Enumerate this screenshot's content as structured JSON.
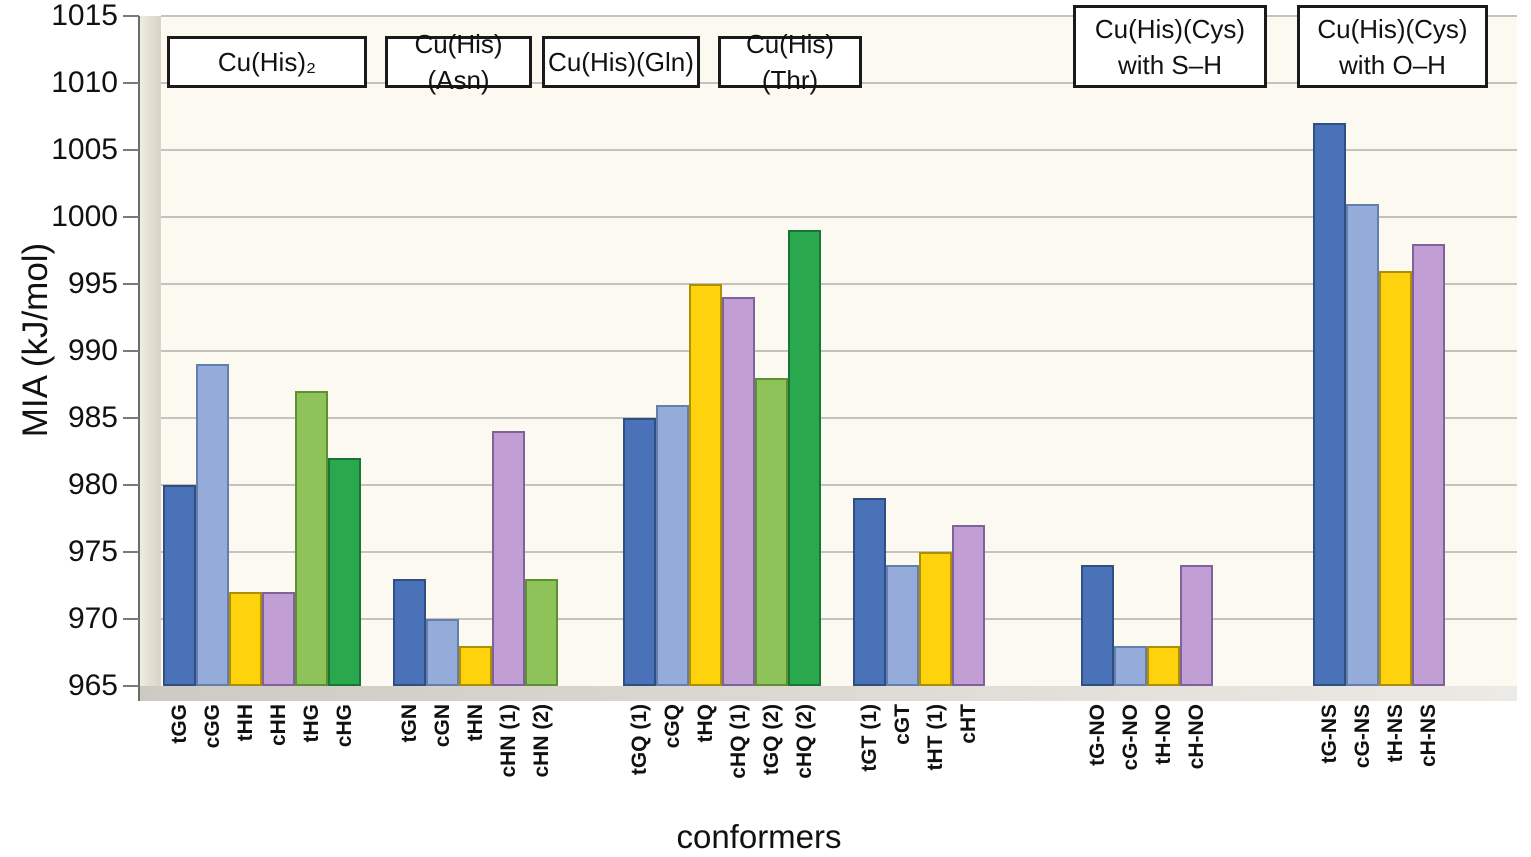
{
  "chart_data": {
    "type": "bar",
    "title": "",
    "ylabel": "MIA (kJ/mol)",
    "xlabel": "conformers",
    "ylim": [
      965,
      1015
    ],
    "ytick_step": 5,
    "grid": true,
    "legend": "none",
    "plot_background": "#fbf9f0",
    "colors": [
      "#4A72B9",
      "#95ACDA",
      "#FED20D",
      "#C19ED4",
      "#8EC35A",
      "#2AA84D"
    ],
    "border_colors": [
      "#2F4E82",
      "#647FAE",
      "#AD8F04",
      "#7F629C",
      "#5F8F33",
      "#187538"
    ],
    "groups": [
      {
        "label": "Cu(His)₂",
        "lines": [
          "Cu(His)₂"
        ],
        "bars": [
          {
            "conformer": "tGG",
            "value": 980,
            "color_index": 0
          },
          {
            "conformer": "cGG",
            "value": 989,
            "color_index": 1
          },
          {
            "conformer": "tHH",
            "value": 972,
            "color_index": 2
          },
          {
            "conformer": "cHH",
            "value": 972,
            "color_index": 3
          },
          {
            "conformer": "tHG",
            "value": 987,
            "color_index": 4
          },
          {
            "conformer": "cHG",
            "value": 982,
            "color_index": 5
          }
        ]
      },
      {
        "label": "Cu(His)(Asn)",
        "lines": [
          "Cu(His)(Asn)"
        ],
        "bars": [
          {
            "conformer": "tGN",
            "value": 973,
            "color_index": 0
          },
          {
            "conformer": "cGN",
            "value": 970,
            "color_index": 1
          },
          {
            "conformer": "tHN",
            "value": 968,
            "color_index": 2
          },
          {
            "conformer": "cHN (1)",
            "value": 984,
            "color_index": 3
          },
          {
            "conformer": "cHN (2)",
            "value": 973,
            "color_index": 4
          }
        ]
      },
      {
        "label": "Cu(His)(Gln)",
        "lines": [
          "Cu(His)(Gln)"
        ],
        "bars": [
          {
            "conformer": "tGQ (1)",
            "value": 985,
            "color_index": 0
          },
          {
            "conformer": "cGQ",
            "value": 986,
            "color_index": 1
          },
          {
            "conformer": "tHQ",
            "value": 995,
            "color_index": 2
          },
          {
            "conformer": "cHQ (1)",
            "value": 994,
            "color_index": 3
          },
          {
            "conformer": "tGQ (2)",
            "value": 988,
            "color_index": 4
          },
          {
            "conformer": "cHQ (2)",
            "value": 999,
            "color_index": 5
          }
        ]
      },
      {
        "label": "Cu(His)(Thr)",
        "lines": [
          "Cu(His)(Thr)"
        ],
        "bars": [
          {
            "conformer": "tGT (1)",
            "value": 979,
            "color_index": 0
          },
          {
            "conformer": "cGT",
            "value": 974,
            "color_index": 1
          },
          {
            "conformer": "tHT (1)",
            "value": 975,
            "color_index": 2
          },
          {
            "conformer": "cHT",
            "value": 977,
            "color_index": 3
          }
        ]
      },
      {
        "label": "Cu(His)(Cys) with S–H",
        "lines": [
          "Cu(His)(Cys)",
          "with S–H"
        ],
        "bars": [
          {
            "conformer": "tG-NO",
            "value": 974,
            "color_index": 0
          },
          {
            "conformer": "cG-NO",
            "value": 968,
            "color_index": 1
          },
          {
            "conformer": "tH-NO",
            "value": 968,
            "color_index": 2
          },
          {
            "conformer": "cH-NO",
            "value": 974,
            "color_index": 3
          }
        ]
      },
      {
        "label": "Cu(His)(Cys) with O–H",
        "lines": [
          "Cu(His)(Cys)",
          "with O–H"
        ],
        "bars": [
          {
            "conformer": "tG-NS",
            "value": 1007,
            "color_index": 0
          },
          {
            "conformer": "cG-NS",
            "value": 1001,
            "color_index": 1
          },
          {
            "conformer": "tH-NS",
            "value": 996,
            "color_index": 2
          },
          {
            "conformer": "cH-NS",
            "value": 998,
            "color_index": 3
          }
        ]
      }
    ]
  }
}
